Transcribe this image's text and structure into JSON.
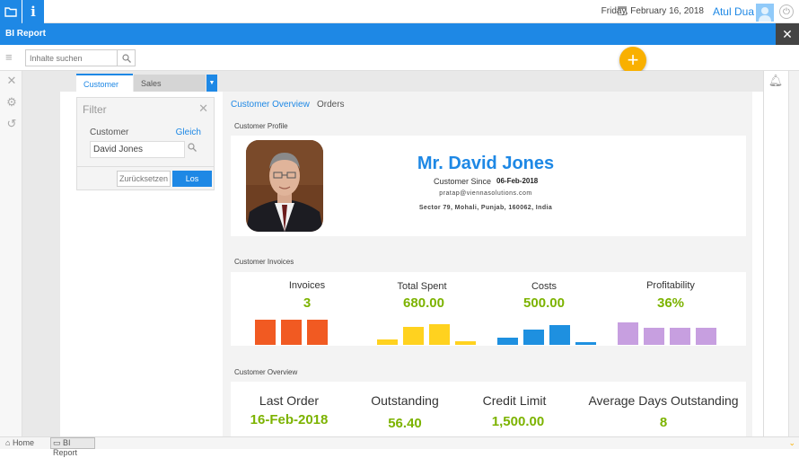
{
  "header": {
    "date": "Friday, February 16, 2018",
    "user_name": "Atul Dua",
    "info_glyph": "i"
  },
  "titlebar": {
    "title": "BI Report",
    "close_glyph": "✕"
  },
  "toolbar": {
    "search_placeholder": "Inhalte suchen",
    "fab_glyph": "+"
  },
  "tabs": [
    {
      "label": "Customer",
      "active": true
    },
    {
      "label": "Sales Performance",
      "active": false
    }
  ],
  "filter": {
    "title": "Filter",
    "field_label": "Customer",
    "operator": "Gleich",
    "value": "David Jones",
    "reset_label": "Zurücksetzen",
    "go_label": "Los"
  },
  "view_tabs": [
    "Customer Overview",
    "Orders"
  ],
  "profile": {
    "section_label": "Customer Profile",
    "name": "Mr. David Jones",
    "since_label": "Customer Since",
    "since_value": "06-Feb-2018",
    "email": "pratap@viennasolutions.com",
    "address": "Sector 79, Mohali, Punjab, 160062, India"
  },
  "invoices": {
    "section_label": "Customer Invoices",
    "kpis": [
      {
        "label": "Invoices",
        "value": "3",
        "color": "#f15a22",
        "bars": [
          1.0,
          1.0,
          1.0
        ]
      },
      {
        "label": "Total Spent",
        "value": "680.00",
        "color": "#ffd21f",
        "bars": [
          0.22,
          0.7,
          0.82,
          0.15
        ]
      },
      {
        "label": "Costs",
        "value": "500.00",
        "color": "#1e90e0",
        "bars": [
          0.3,
          0.62,
          0.78,
          0.12
        ]
      },
      {
        "label": "Profitability",
        "value": "36%",
        "color": "#c79fe0",
        "bars": [
          0.9,
          0.68,
          0.68,
          0.68
        ]
      }
    ]
  },
  "overview": {
    "section_label": "Customer Overview",
    "items": [
      {
        "label": "Last Order",
        "value": "16-Feb-2018"
      },
      {
        "label": "Outstanding",
        "value": "56.40"
      },
      {
        "label": "Credit Limit",
        "value": "1,500.00"
      },
      {
        "label": "Average Days Outstanding",
        "value": "8"
      }
    ]
  },
  "statusbar": {
    "home_label": "Home",
    "tab_label": "BI Report"
  },
  "colors": {
    "primary": "#1e88e5",
    "accent": "#f9b000",
    "value_green": "#7cb300"
  }
}
